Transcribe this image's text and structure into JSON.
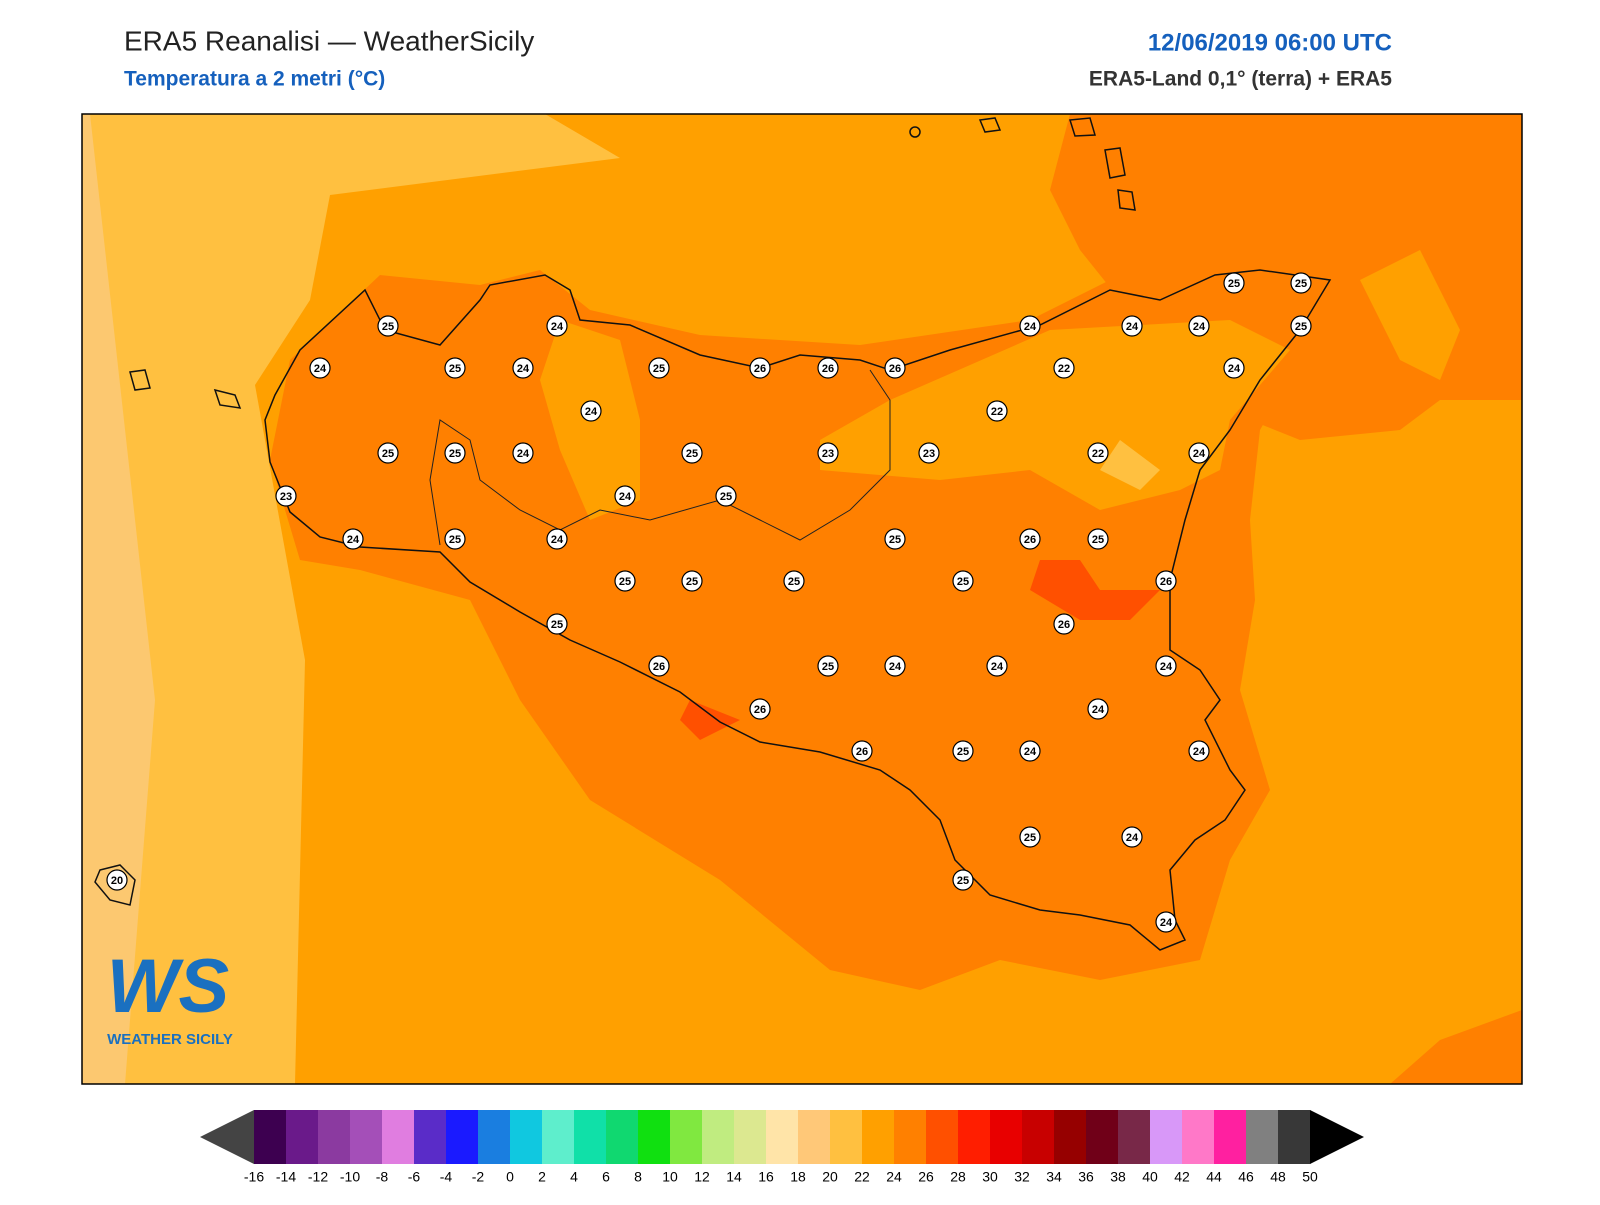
{
  "header": {
    "title": "ERA5 Reanalisi — WeatherSicily",
    "subtitle": "Temperatura a 2 metri (°C)",
    "datetime": "12/06/2019 06:00 UTC",
    "source": "ERA5-Land 0,1° (terra) + ERA5"
  },
  "stations": {
    "values": [
      25,
      25,
      25,
      24,
      24,
      24,
      24,
      25,
      24,
      25,
      24,
      25,
      26,
      26,
      26,
      22,
      24,
      24,
      22,
      25,
      25,
      24,
      25,
      23,
      23,
      22,
      24,
      23,
      24,
      25,
      24,
      25,
      24,
      25,
      26,
      25,
      25,
      25,
      25,
      25,
      26,
      25,
      26,
      26,
      25,
      24,
      24,
      24,
      26,
      24,
      26,
      25,
      24,
      24,
      25,
      24,
      20,
      25,
      24
    ]
  },
  "colorbar": {
    "ticks": [
      -16,
      -14,
      -12,
      -10,
      -8,
      -6,
      -4,
      -2,
      0,
      2,
      4,
      6,
      8,
      10,
      12,
      14,
      16,
      18,
      20,
      22,
      24,
      26,
      28,
      30,
      32,
      34,
      36,
      38,
      40,
      42,
      44,
      46,
      48,
      50
    ],
    "colors": [
      "#3d0050",
      "#6a1a8a",
      "#8b3aa0",
      "#a44fb8",
      "#e07de0",
      "#5a2cc8",
      "#1a1aff",
      "#1a7ee0",
      "#10c8e0",
      "#5eeecc",
      "#10e0a8",
      "#10d870",
      "#10e010",
      "#80e840",
      "#c0ec80",
      "#dce890",
      "#ffe4a8",
      "#ffc878",
      "#ffc040",
      "#ffa000",
      "#ff8000",
      "#ff5000",
      "#ff1e00",
      "#e80000",
      "#c80000",
      "#960000",
      "#700018",
      "#782848",
      "#d898f8",
      "#ff78c8",
      "#ff20a0",
      "#808080",
      "#383838"
    ],
    "under_color": "#444444",
    "over_color": "#000000"
  },
  "logo": {
    "mark": "WS",
    "name": "WEATHER SICILY"
  }
}
